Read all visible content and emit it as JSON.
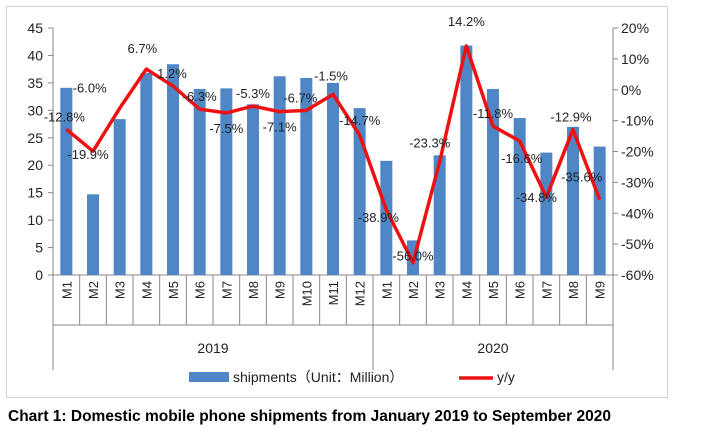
{
  "chart_data": {
    "type": "bar+line",
    "categories": [
      "M1",
      "M2",
      "M3",
      "M4",
      "M5",
      "M6",
      "M7",
      "M8",
      "M9",
      "M10",
      "M11",
      "M12",
      "M1",
      "M2",
      "M3",
      "M4",
      "M5",
      "M6",
      "M7",
      "M8",
      "M9"
    ],
    "groups": [
      {
        "label": "2019",
        "count": 12
      },
      {
        "label": "2020",
        "count": 9
      }
    ],
    "series": [
      {
        "name": "shipments（Unit：Million）",
        "type": "bar",
        "axis": "left",
        "color": "#4f86c6",
        "values": [
          34.1,
          14.7,
          28.4,
          36.8,
          38.4,
          33.9,
          34.0,
          31.1,
          36.2,
          35.9,
          35.0,
          30.4,
          20.8,
          6.3,
          21.8,
          41.8,
          33.9,
          28.6,
          22.3,
          27.0,
          23.4
        ]
      },
      {
        "name": "y/y",
        "type": "line",
        "axis": "right",
        "color": "#ee1111",
        "values": [
          -12.8,
          -19.9,
          -6.0,
          6.7,
          1.2,
          -6.3,
          -7.5,
          -5.3,
          -7.1,
          -6.7,
          -1.5,
          -14.7,
          -38.9,
          -56.0,
          -23.3,
          14.2,
          -11.8,
          -16.6,
          -34.8,
          -12.9,
          -35.6
        ],
        "labels": [
          "-12.8%",
          "-19.9%",
          "-6.0%",
          "6.7%",
          "1.2%",
          "-6.3%",
          "-7.5%",
          "-5.3%",
          "-7.1%",
          "-6.7%",
          "-1.5%",
          "-14.7%",
          "-38.9%",
          "-56.0%",
          "-23.3%",
          "14.2%",
          "-11.8%",
          "-16.6%",
          "-34.8%",
          "-12.9%",
          "-35.6%"
        ]
      }
    ],
    "ylim_left": [
      0,
      45
    ],
    "yticks_left": [
      "0",
      "5",
      "10",
      "15",
      "20",
      "25",
      "30",
      "35",
      "40",
      "45"
    ],
    "ylim_right": [
      -60,
      20
    ],
    "yticks_right": [
      "-60%",
      "-50%",
      "-40%",
      "-30%",
      "-20%",
      "-10%",
      "0%",
      "10%",
      "20%"
    ],
    "legend_position": "bottom",
    "grid": false
  },
  "caption": "Chart 1: Domestic mobile phone shipments from January 2019 to September 2020"
}
